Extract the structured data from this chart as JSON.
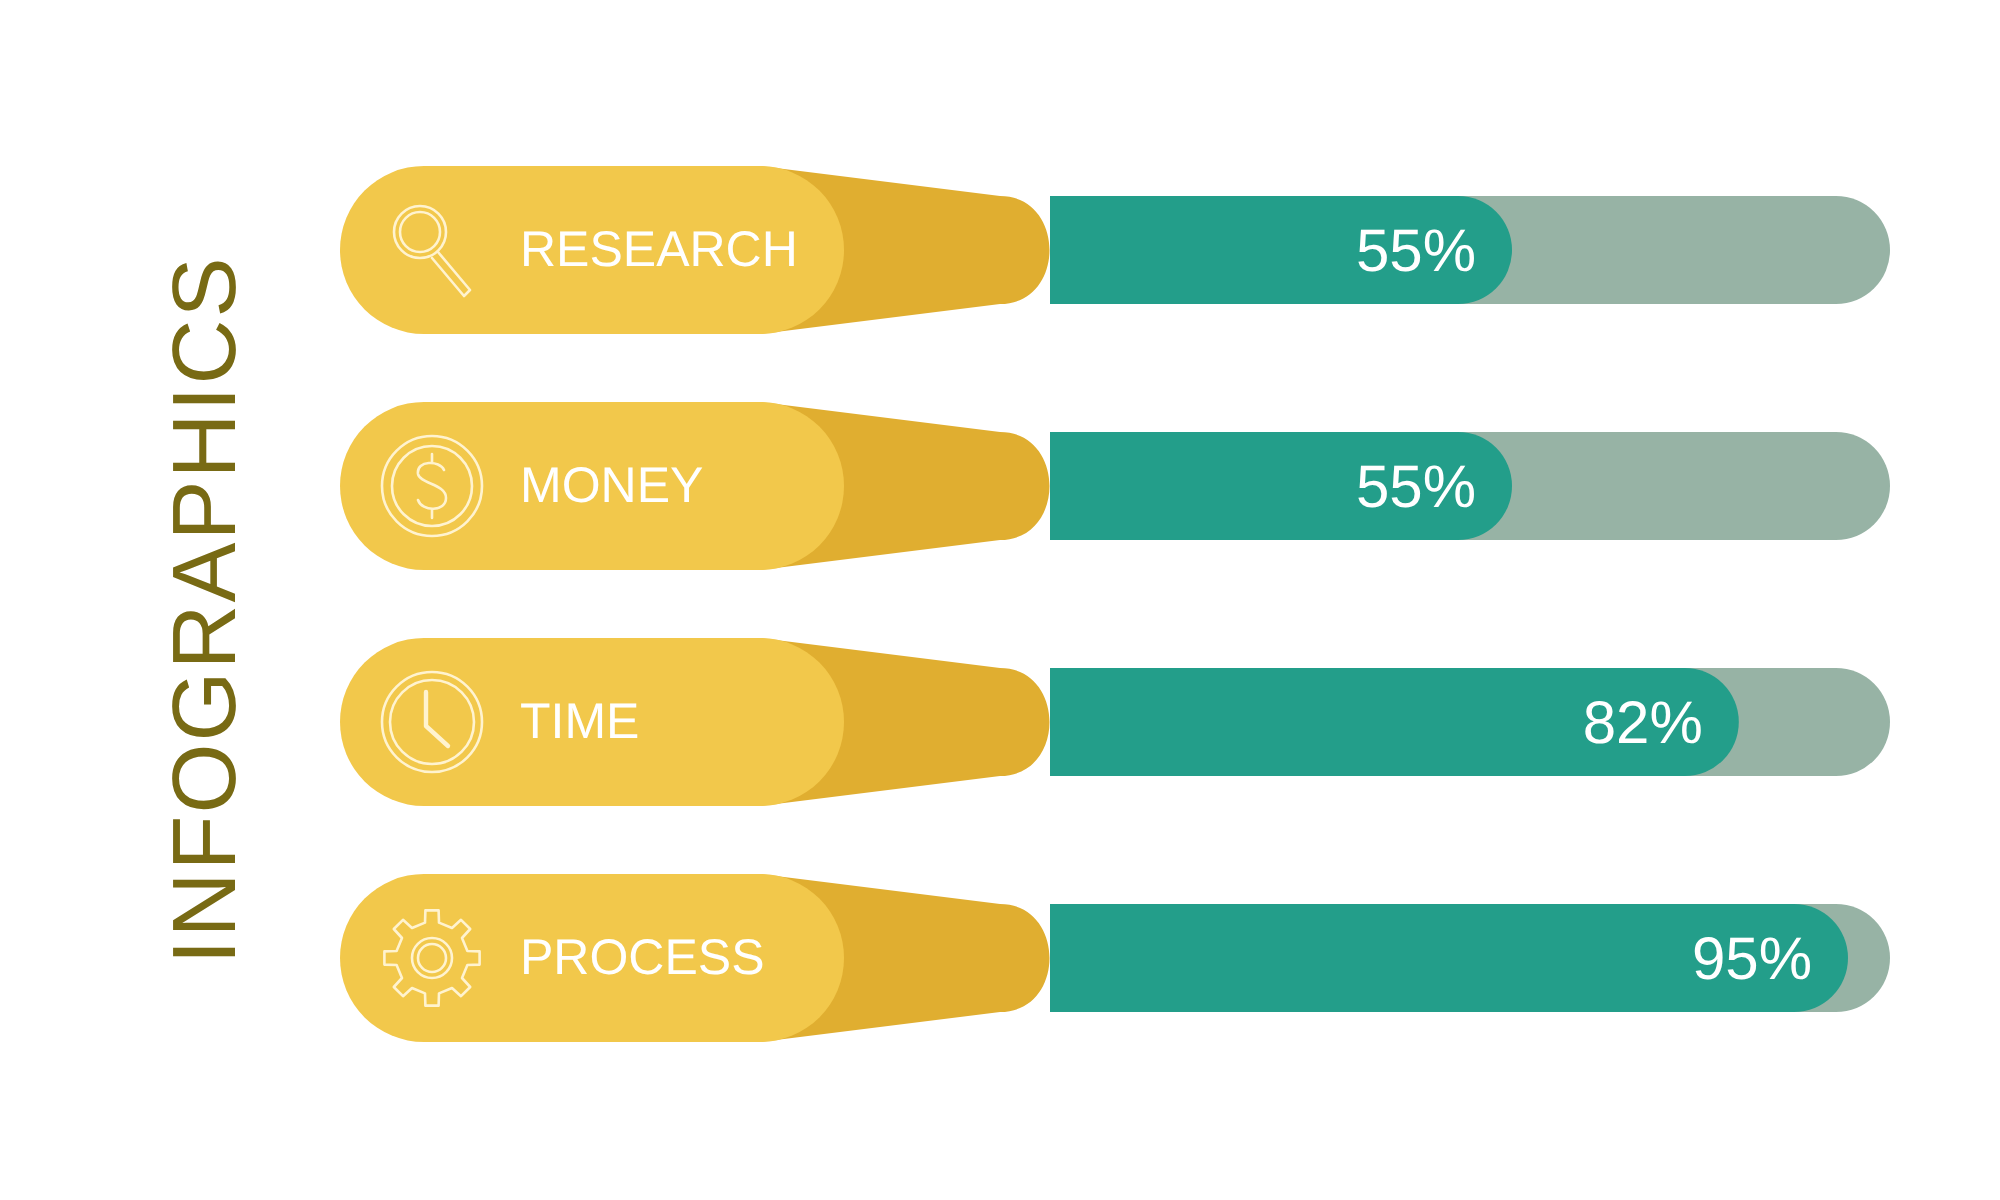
{
  "chart_data": {
    "type": "bar",
    "title": "INFOGRAPHICS",
    "orientation": "horizontal",
    "categories": [
      "RESEARCH",
      "MONEY",
      "TIME",
      "PROCESS"
    ],
    "values": [
      55,
      55,
      82,
      95
    ],
    "color": "#239e8a",
    "value_labels": [
      "55%",
      "55%",
      "82%",
      "95%"
    ],
    "xlim": [
      0,
      100
    ],
    "tick_labels": "y"
  }
}
